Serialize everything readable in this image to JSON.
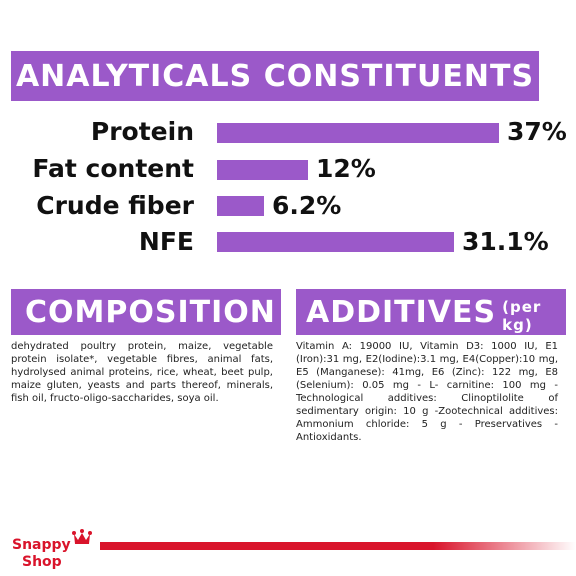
{
  "top_banner": "ANALYTICALS CONSTITUENTS",
  "metrics": [
    {
      "label": "Protein",
      "value_text": "37%",
      "value": 37
    },
    {
      "label": "Fat content",
      "value_text": "12%",
      "value": 12
    },
    {
      "label": "Crude fiber",
      "value_text": "6.2%",
      "value": 6.2
    },
    {
      "label": "NFE",
      "value_text": "31.1%",
      "value": 31.1
    }
  ],
  "composition": {
    "heading": "COMPOSITION",
    "text": "dehydrated poultry protein, maize, vegetable protein isolate*, vegetable fibres, animal fats, hydrolysed animal proteins, rice, wheat, beet pulp, maize gluten, yeasts and parts thereof, minerals, fish oil, fructo-oligo-saccharides, soya oil."
  },
  "additives": {
    "heading": "ADDITIVES",
    "heading_small": "(per kg)",
    "text": "Vitamin A: 19000 IU, Vitamin D3: 1000 IU, E1 (Iron):31 mg, E2(Iodine):3.1 mg, E4(Copper):10 mg, E5 (Manganese): 41mg, E6 (Zinc): 122 mg, E8 (Selenium): 0.05 mg - L- carnitine: 100 mg - Technological additives: Clinoptilolite of sedimentary origin: 10 g -Zootechnical additives: Ammonium chloride: 5 g - Preservatives - Antioxidants."
  },
  "logo": {
    "line1": "Snappy",
    "line2": "Shop"
  },
  "colors": {
    "accent": "#9b59c9",
    "brand_red": "#d9142b"
  }
}
